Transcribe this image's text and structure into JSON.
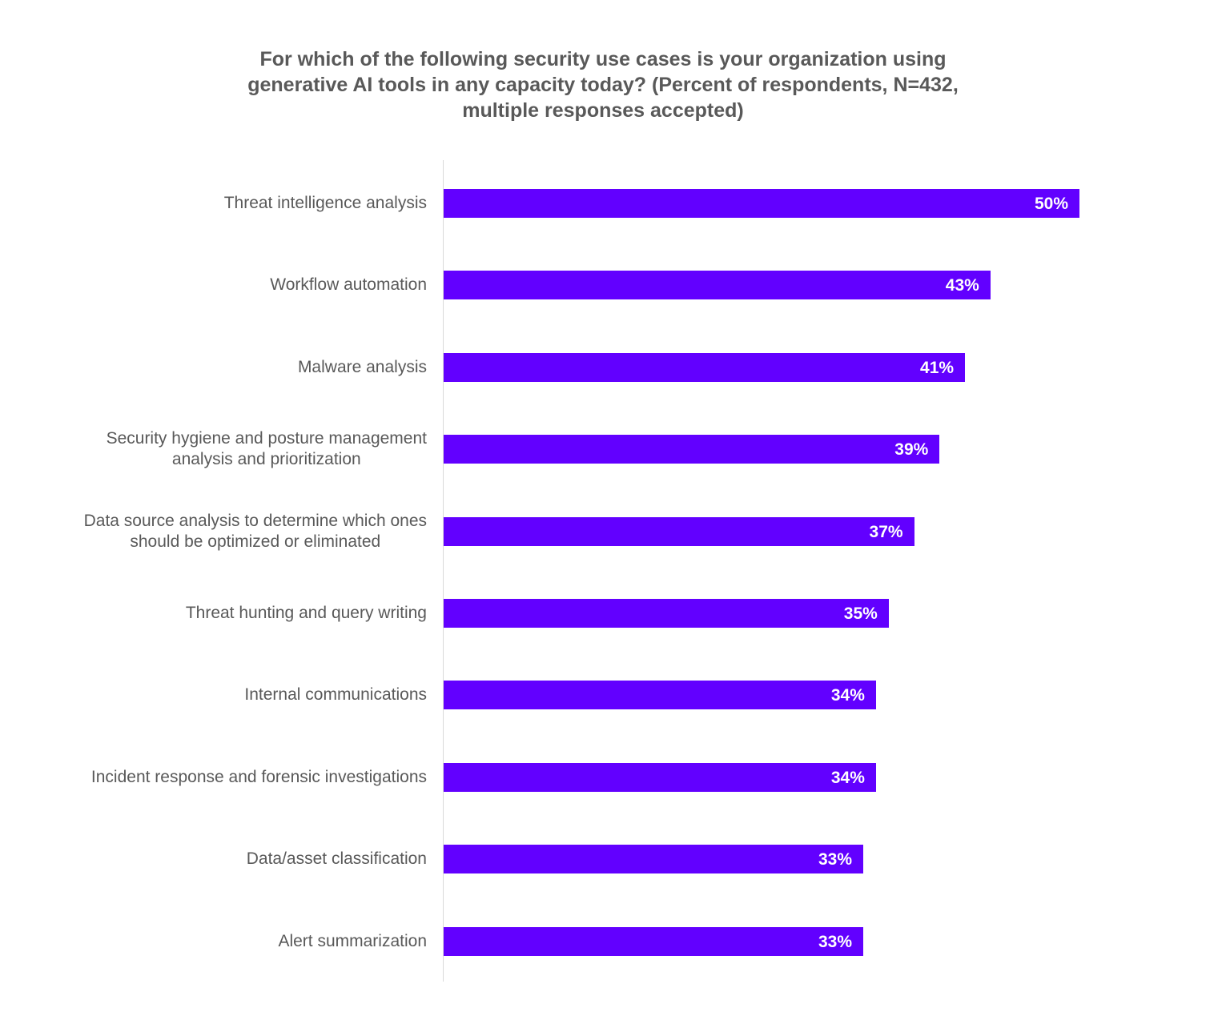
{
  "chart_data": {
    "type": "bar",
    "orientation": "horizontal",
    "title": "For which of the following security use cases is your organization using generative AI tools in any capacity today? (Percent of respondents, N=432, multiple responses accepted)",
    "title_lines": [
      "For which of the following security use cases is your organization using",
      "generative AI tools in any capacity today? (Percent of respondents, N=432,",
      "multiple responses accepted)"
    ],
    "xlabel": "",
    "ylabel": "",
    "grid": false,
    "legend": null,
    "bar_color": "#6200ff",
    "categories": [
      "Threat intelligence analysis",
      "Workflow automation",
      "Malware analysis",
      "Security hygiene and posture management analysis and prioritization",
      "Data source analysis to determine which ones should be optimized or eliminated",
      "Threat hunting and query writing",
      "Internal communications",
      "Incident response and forensic investigations",
      "Data/asset classification",
      "Alert summarization"
    ],
    "values": [
      50,
      43,
      41,
      39,
      37,
      35,
      34,
      34,
      33,
      33
    ],
    "value_labels": [
      "50%",
      "43%",
      "41%",
      "39%",
      "37%",
      "35%",
      "34%",
      "34%",
      "33%",
      "33%"
    ],
    "unit": "%"
  },
  "rows": [
    {
      "label_lines": [
        "Threat intelligence analysis"
      ],
      "value": 50,
      "value_label": "50%"
    },
    {
      "label_lines": [
        "Workflow automation"
      ],
      "value": 43,
      "value_label": "43%"
    },
    {
      "label_lines": [
        "Malware analysis"
      ],
      "value": 41,
      "value_label": "41%"
    },
    {
      "label_lines": [
        "Security hygiene and posture management",
        "analysis and prioritization"
      ],
      "value": 39,
      "value_label": "39%"
    },
    {
      "label_lines": [
        "Data source analysis to determine which ones",
        "should be optimized or eliminated"
      ],
      "value": 37,
      "value_label": "37%"
    },
    {
      "label_lines": [
        "Threat hunting and query writing"
      ],
      "value": 35,
      "value_label": "35%"
    },
    {
      "label_lines": [
        "Internal communications"
      ],
      "value": 34,
      "value_label": "34%"
    },
    {
      "label_lines": [
        "Incident response and forensic investigations"
      ],
      "value": 34,
      "value_label": "34%"
    },
    {
      "label_lines": [
        "Data/asset classification"
      ],
      "value": 33,
      "value_label": "33%"
    },
    {
      "label_lines": [
        "Alert summarization"
      ],
      "value": 33,
      "value_label": "33%"
    }
  ]
}
